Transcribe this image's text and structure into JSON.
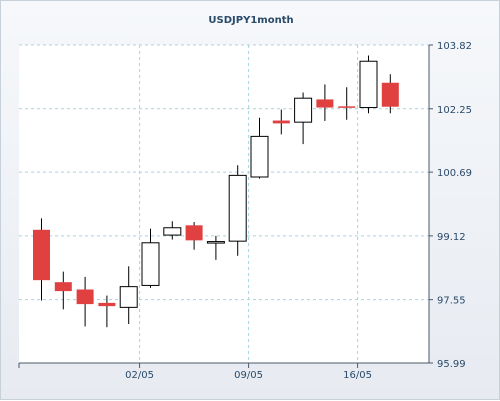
{
  "chart_data": {
    "type": "candlestick",
    "title": "USDJPY1month",
    "xlabel": "",
    "ylabel": "",
    "ylim": [
      95.99,
      103.82
    ],
    "y_ticks": [
      "103.82",
      "102.25",
      "100.69",
      "99.12",
      "97.55",
      "95.99"
    ],
    "x_tick_labels": [
      {
        "label": "02/05",
        "index": 5
      },
      {
        "label": "09/05",
        "index": 10
      },
      {
        "label": "16/05",
        "index": 15
      }
    ],
    "grid": true,
    "up_color": "#ffffff",
    "down_color": "#e04040",
    "candles": [
      {
        "open": 99.27,
        "high": 99.55,
        "low": 97.53,
        "close": 98.03
      },
      {
        "open": 97.98,
        "high": 98.24,
        "low": 97.31,
        "close": 97.76
      },
      {
        "open": 97.8,
        "high": 98.11,
        "low": 96.89,
        "close": 97.44
      },
      {
        "open": 97.47,
        "high": 97.65,
        "low": 96.87,
        "close": 97.39
      },
      {
        "open": 97.36,
        "high": 98.37,
        "low": 96.95,
        "close": 97.87
      },
      {
        "open": 97.9,
        "high": 99.3,
        "low": 97.84,
        "close": 98.95
      },
      {
        "open": 99.14,
        "high": 99.48,
        "low": 99.03,
        "close": 99.32
      },
      {
        "open": 99.38,
        "high": 99.46,
        "low": 98.78,
        "close": 99.01
      },
      {
        "open": 98.98,
        "high": 99.12,
        "low": 98.53,
        "close": 98.98
      },
      {
        "open": 98.99,
        "high": 100.86,
        "low": 98.63,
        "close": 100.61
      },
      {
        "open": 100.57,
        "high": 102.03,
        "low": 100.53,
        "close": 101.57
      },
      {
        "open": 101.96,
        "high": 102.23,
        "low": 101.62,
        "close": 101.89
      },
      {
        "open": 101.92,
        "high": 102.65,
        "low": 101.38,
        "close": 102.51
      },
      {
        "open": 102.48,
        "high": 102.85,
        "low": 101.95,
        "close": 102.28
      },
      {
        "open": 102.31,
        "high": 102.78,
        "low": 101.98,
        "close": 102.3
      },
      {
        "open": 102.28,
        "high": 103.56,
        "low": 102.14,
        "close": 103.42
      },
      {
        "open": 102.89,
        "high": 103.1,
        "low": 102.14,
        "close": 102.3
      }
    ]
  }
}
